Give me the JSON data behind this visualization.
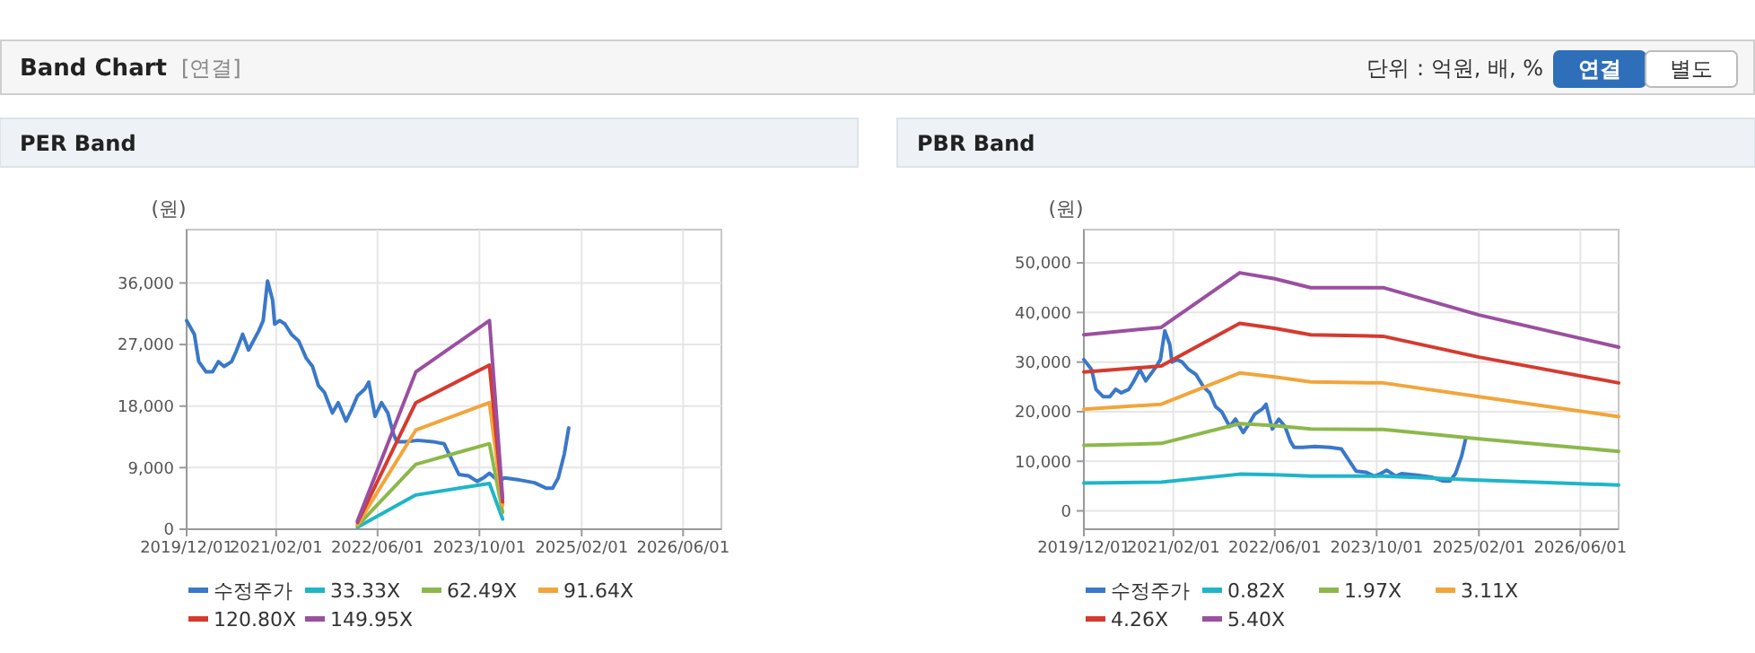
{
  "chart_data": [
    {
      "type": "other",
      "title": "Band Chart",
      "subtitle": "[연결]",
      "annotations": [
        "단위 : 억원, 배, %",
        "연결",
        "별도"
      ]
    },
    {
      "type": "line",
      "title": "PER Band",
      "ylabel": "(원)",
      "grid": true,
      "legend": "bottom",
      "marker": "none",
      "line_style": "solid",
      "xlim": [
        "2019-12-01",
        "2026-12-01"
      ],
      "xticks": [
        {
          "value": "2019-12-01",
          "label": "2019/12/01"
        },
        {
          "value": "2021-02-01",
          "label": "2021/02/01"
        },
        {
          "value": "2022-06-01",
          "label": "2022/06/01"
        },
        {
          "value": "2023-10-01",
          "label": "2023/10/01"
        },
        {
          "value": "2025-02-01",
          "label": "2025/02/01"
        },
        {
          "value": "2026-06-01",
          "label": "2026/06/01"
        }
      ],
      "ylim": [
        0,
        43800
      ],
      "yticks": [
        0,
        {
          "value": 9000,
          "label": "9,000"
        },
        {
          "value": 18000,
          "label": "18,000"
        },
        {
          "value": 27000,
          "label": "27,000"
        },
        {
          "value": 36000,
          "label": "36,000"
        }
      ],
      "series": [
        {
          "name": "수정주가",
          "color": "#3a78c9",
          "x": [
            "2019-12-01",
            "2020-01-07",
            "2020-01-28",
            "2020-03-03",
            "2020-04-03",
            "2020-05-01",
            "2020-05-28",
            "2020-07-03",
            "2020-07-25",
            "2020-08-25",
            "2020-09-22",
            "2020-11-10",
            "2020-12-01",
            "2020-12-22",
            "2021-01-15",
            "2021-01-25",
            "2021-02-18",
            "2021-03-15",
            "2021-04-15",
            "2021-05-20",
            "2021-06-25",
            "2021-07-25",
            "2021-08-22",
            "2021-09-20",
            "2021-10-28",
            "2021-11-25",
            "2022-01-01",
            "2022-01-28",
            "2022-02-25",
            "2022-04-01",
            "2022-04-20",
            "2022-05-20",
            "2022-06-20",
            "2022-07-20",
            "2022-08-15",
            "2022-09-01",
            "2022-10-12",
            "2022-12-10",
            "2023-02-20",
            "2023-04-15",
            "2023-06-25",
            "2023-08-10",
            "2023-09-20",
            "2023-10-20",
            "2023-11-18",
            "2024-01-01",
            "2024-01-28",
            "2024-04-10",
            "2024-06-20",
            "2024-08-15",
            "2024-09-15",
            "2024-10-12",
            "2024-11-10",
            "2024-12-01"
          ],
          "values": [
            30500,
            28500,
            24500,
            23000,
            23000,
            24500,
            23800,
            24500,
            26000,
            28500,
            26200,
            29000,
            30500,
            36300,
            33500,
            30000,
            30500,
            30000,
            28500,
            27500,
            25000,
            23800,
            21000,
            20000,
            17000,
            18500,
            15800,
            17500,
            19500,
            20500,
            21500,
            16500,
            18500,
            17000,
            14000,
            12800,
            12800,
            13000,
            12800,
            12500,
            8000,
            7800,
            7000,
            7500,
            8200,
            7000,
            7500,
            7200,
            6800,
            6000,
            6000,
            7500,
            11000,
            14800
          ]
        },
        {
          "name": "33.33X",
          "color": "#1fb5c8",
          "x": [
            "2022-02-25",
            "2022-12-01",
            "2023-11-18",
            "2024-01-20"
          ],
          "values": [
            300,
            5000,
            6700,
            1500
          ]
        },
        {
          "name": "62.49X",
          "color": "#8cb84b",
          "x": [
            "2022-02-25",
            "2022-12-01",
            "2023-11-18",
            "2024-01-20"
          ],
          "values": [
            500,
            9500,
            12500,
            2500
          ]
        },
        {
          "name": "91.64X",
          "color": "#f2a53a",
          "x": [
            "2022-02-25",
            "2022-12-01",
            "2023-11-18",
            "2024-01-20"
          ],
          "values": [
            700,
            14500,
            18500,
            3500
          ]
        },
        {
          "name": "120.80X",
          "color": "#d63a2f",
          "x": [
            "2022-02-25",
            "2022-12-01",
            "2023-11-18",
            "2024-01-20"
          ],
          "values": [
            1000,
            18500,
            24000,
            4000
          ]
        },
        {
          "name": "149.95X",
          "color": "#9b4fa0",
          "x": [
            "2022-02-25",
            "2022-12-01",
            "2023-11-18",
            "2024-01-20"
          ],
          "values": [
            1200,
            23000,
            30500,
            4500
          ]
        }
      ]
    },
    {
      "type": "line",
      "title": "PBR Band",
      "ylabel": "(원)",
      "grid": true,
      "legend": "bottom",
      "marker": "none",
      "line_style": "solid",
      "xlim": [
        "2019-12-01",
        "2026-12-01"
      ],
      "xticks": [
        {
          "value": "2019-12-01",
          "label": "2019/12/01"
        },
        {
          "value": "2021-02-01",
          "label": "2021/02/01"
        },
        {
          "value": "2022-06-01",
          "label": "2022/06/01"
        },
        {
          "value": "2023-10-01",
          "label": "2023/10/01"
        },
        {
          "value": "2025-02-01",
          "label": "2025/02/01"
        },
        {
          "value": "2026-06-01",
          "label": "2026/06/01"
        }
      ],
      "ylim": [
        -3700,
        56700
      ],
      "yticks": [
        0,
        {
          "value": 10000,
          "label": "10,000"
        },
        {
          "value": 20000,
          "label": "20,000"
        },
        {
          "value": 30000,
          "label": "30,000"
        },
        {
          "value": 40000,
          "label": "40,000"
        },
        {
          "value": 50000,
          "label": "50,000"
        }
      ],
      "series": [
        {
          "name": "수정주가",
          "color": "#3a78c9",
          "x": [
            "2019-12-01",
            "2020-01-07",
            "2020-01-28",
            "2020-03-03",
            "2020-04-03",
            "2020-05-01",
            "2020-05-28",
            "2020-07-03",
            "2020-07-25",
            "2020-08-25",
            "2020-09-22",
            "2020-11-10",
            "2020-12-01",
            "2020-12-22",
            "2021-01-15",
            "2021-01-25",
            "2021-02-18",
            "2021-03-15",
            "2021-04-15",
            "2021-05-20",
            "2021-06-25",
            "2021-07-25",
            "2021-08-22",
            "2021-09-20",
            "2021-10-28",
            "2021-11-25",
            "2022-01-01",
            "2022-01-28",
            "2022-02-25",
            "2022-04-01",
            "2022-04-20",
            "2022-05-20",
            "2022-06-20",
            "2022-07-20",
            "2022-08-15",
            "2022-09-01",
            "2022-10-12",
            "2022-12-10",
            "2023-02-20",
            "2023-04-15",
            "2023-06-25",
            "2023-08-10",
            "2023-09-20",
            "2023-10-20",
            "2023-11-18",
            "2024-01-01",
            "2024-01-28",
            "2024-04-10",
            "2024-06-20",
            "2024-08-15",
            "2024-09-15",
            "2024-10-12",
            "2024-11-10",
            "2024-12-01"
          ],
          "values": [
            30500,
            28500,
            24500,
            23000,
            23000,
            24500,
            23800,
            24500,
            26000,
            28500,
            26200,
            29000,
            30500,
            36300,
            33500,
            30000,
            30500,
            30000,
            28500,
            27500,
            25000,
            23800,
            21000,
            20000,
            17000,
            18500,
            15800,
            17500,
            19500,
            20500,
            21500,
            16500,
            18500,
            17000,
            14000,
            12800,
            12800,
            13000,
            12800,
            12500,
            8000,
            7800,
            7000,
            7500,
            8200,
            7000,
            7500,
            7200,
            6800,
            6000,
            6000,
            7500,
            11000,
            14800
          ]
        },
        {
          "name": "0.82X",
          "color": "#1fb5c8",
          "x": [
            "2019-12-01",
            "2020-12-05",
            "2021-12-15",
            "2022-06-01",
            "2022-11-20",
            "2023-11-01",
            "2025-02-01",
            "2026-12-01"
          ],
          "values": [
            5600,
            5800,
            7400,
            7300,
            7000,
            7000,
            6200,
            5200
          ]
        },
        {
          "name": "1.97X",
          "color": "#8cb84b",
          "x": [
            "2019-12-01",
            "2020-12-05",
            "2021-12-15",
            "2022-06-01",
            "2022-11-20",
            "2023-11-01",
            "2025-02-01",
            "2026-12-01"
          ],
          "values": [
            13200,
            13600,
            17600,
            17200,
            16500,
            16400,
            14500,
            12000
          ]
        },
        {
          "name": "3.11X",
          "color": "#f2a53a",
          "x": [
            "2019-12-01",
            "2020-12-05",
            "2021-12-15",
            "2022-06-01",
            "2022-11-20",
            "2023-11-01",
            "2025-02-01",
            "2026-12-01"
          ],
          "values": [
            20500,
            21500,
            27800,
            27000,
            26000,
            25800,
            23000,
            19000
          ]
        },
        {
          "name": "4.26X",
          "color": "#d63a2f",
          "x": [
            "2019-12-01",
            "2020-12-05",
            "2021-12-15",
            "2022-06-01",
            "2022-11-20",
            "2023-11-01",
            "2025-02-01",
            "2026-12-01"
          ],
          "values": [
            28000,
            29200,
            37800,
            36800,
            35500,
            35200,
            31000,
            25800
          ]
        },
        {
          "name": "5.40X",
          "color": "#9b4fa0",
          "x": [
            "2019-12-01",
            "2020-12-05",
            "2021-12-15",
            "2022-06-01",
            "2022-11-20",
            "2023-11-01",
            "2025-02-01",
            "2026-12-01"
          ],
          "values": [
            35500,
            37000,
            48000,
            46800,
            45000,
            45000,
            39500,
            33000
          ]
        }
      ]
    }
  ]
}
